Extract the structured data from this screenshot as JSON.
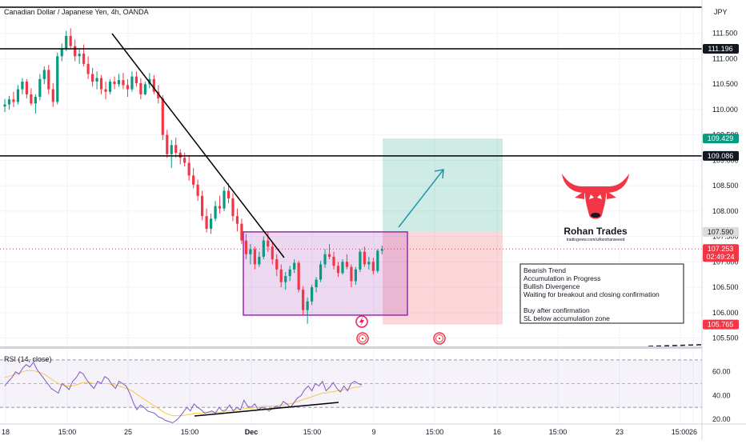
{
  "header": {
    "title": "Canadian Dollar / Japanese Yen, 4h, OANDA",
    "currency": "JPY"
  },
  "chart_data": {
    "type": "candlestick",
    "symbol": "CADJPY",
    "timeframe": "4h",
    "price_axis": {
      "ticks": [
        "111.500",
        "111.000",
        "110.500",
        "110.000",
        "109.500",
        "109.000",
        "108.500",
        "108.000",
        "107.500",
        "107.000",
        "106.500",
        "106.000",
        "105.500"
      ],
      "range": [
        105.35,
        112.0
      ]
    },
    "time_axis_labels": [
      "18",
      "15:00",
      "25",
      "15:00",
      "Dec",
      "15:00",
      "9",
      "15:00",
      "16",
      "15:00",
      "23",
      "15:00",
      "26"
    ],
    "candles_ohlc": [
      [
        110.06,
        110.21,
        109.95,
        110.1
      ],
      [
        110.1,
        110.27,
        110.0,
        110.2
      ],
      [
        110.2,
        110.35,
        110.05,
        110.15
      ],
      [
        110.15,
        110.48,
        110.1,
        110.4
      ],
      [
        110.4,
        110.62,
        110.3,
        110.55
      ],
      [
        110.55,
        110.6,
        110.22,
        110.3
      ],
      [
        110.3,
        110.42,
        110.08,
        110.12
      ],
      [
        110.12,
        110.3,
        109.92,
        110.25
      ],
      [
        110.25,
        110.7,
        110.18,
        110.6
      ],
      [
        110.6,
        110.85,
        110.5,
        110.78
      ],
      [
        110.78,
        110.88,
        110.3,
        110.4
      ],
      [
        110.4,
        110.52,
        110.05,
        110.15
      ],
      [
        110.15,
        111.12,
        110.1,
        111.05
      ],
      [
        111.05,
        111.3,
        110.95,
        111.2
      ],
      [
        111.2,
        111.55,
        111.15,
        111.45
      ],
      [
        111.45,
        111.6,
        111.2,
        111.25
      ],
      [
        111.25,
        111.38,
        110.95,
        111.05
      ],
      [
        111.05,
        111.18,
        110.9,
        111.1
      ],
      [
        111.1,
        111.28,
        110.85,
        110.9
      ],
      [
        110.9,
        111.05,
        110.6,
        110.7
      ],
      [
        110.7,
        110.82,
        110.45,
        110.55
      ],
      [
        110.55,
        110.75,
        110.4,
        110.62
      ],
      [
        110.62,
        110.68,
        110.3,
        110.4
      ],
      [
        110.4,
        110.55,
        110.2,
        110.35
      ],
      [
        110.35,
        110.6,
        110.3,
        110.55
      ],
      [
        110.55,
        110.65,
        110.4,
        110.5
      ],
      [
        110.5,
        110.7,
        110.45,
        110.58
      ],
      [
        110.58,
        110.72,
        110.4,
        110.48
      ],
      [
        110.48,
        110.6,
        110.25,
        110.4
      ],
      [
        110.4,
        110.75,
        110.35,
        110.65
      ],
      [
        110.65,
        110.75,
        110.45,
        110.52
      ],
      [
        110.52,
        110.62,
        110.2,
        110.3
      ],
      [
        110.3,
        110.55,
        110.28,
        110.5
      ],
      [
        110.5,
        110.72,
        110.42,
        110.6
      ],
      [
        110.6,
        110.68,
        110.3,
        110.35
      ],
      [
        110.35,
        110.48,
        110.12,
        110.22
      ],
      [
        110.22,
        110.28,
        109.4,
        109.5
      ],
      [
        109.5,
        109.6,
        109.05,
        109.12
      ],
      [
        109.12,
        109.4,
        108.85,
        109.3
      ],
      [
        109.3,
        109.45,
        109.05,
        109.15
      ],
      [
        109.15,
        109.22,
        108.92,
        109.05
      ],
      [
        109.05,
        109.15,
        108.88,
        108.95
      ],
      [
        108.95,
        109.1,
        108.6,
        108.7
      ],
      [
        108.7,
        108.85,
        108.45,
        108.52
      ],
      [
        108.52,
        108.62,
        108.2,
        108.3
      ],
      [
        108.3,
        108.4,
        107.82,
        107.9
      ],
      [
        107.9,
        108.05,
        107.58,
        107.65
      ],
      [
        107.65,
        107.95,
        107.55,
        107.85
      ],
      [
        107.85,
        108.2,
        107.8,
        108.1
      ],
      [
        108.1,
        108.3,
        107.95,
        108.05
      ],
      [
        108.05,
        108.48,
        108.0,
        108.4
      ],
      [
        108.4,
        108.55,
        108.15,
        108.25
      ],
      [
        108.25,
        108.35,
        107.8,
        107.9
      ],
      [
        107.9,
        108.05,
        107.6,
        107.75
      ],
      [
        107.75,
        107.85,
        107.35,
        107.42
      ],
      [
        107.42,
        107.55,
        107.05,
        107.15
      ],
      [
        107.15,
        107.35,
        106.95,
        107.25
      ],
      [
        107.25,
        107.3,
        106.85,
        106.95
      ],
      [
        106.95,
        107.2,
        106.9,
        107.1
      ],
      [
        107.1,
        107.5,
        107.05,
        107.42
      ],
      [
        107.42,
        107.58,
        107.2,
        107.3
      ],
      [
        107.3,
        107.38,
        106.95,
        107.05
      ],
      [
        107.05,
        107.15,
        106.72,
        106.85
      ],
      [
        106.85,
        106.95,
        106.5,
        106.6
      ],
      [
        106.6,
        106.8,
        106.45,
        106.72
      ],
      [
        106.72,
        106.92,
        106.62,
        106.85
      ],
      [
        106.85,
        107.05,
        106.78,
        106.98
      ],
      [
        106.98,
        107.02,
        106.4,
        106.45
      ],
      [
        106.45,
        106.52,
        105.95,
        106.05
      ],
      [
        106.05,
        106.3,
        105.78,
        106.22
      ],
      [
        106.22,
        106.55,
        106.15,
        106.5
      ],
      [
        106.5,
        106.7,
        106.4,
        106.65
      ],
      [
        106.65,
        107.02,
        106.6,
        106.95
      ],
      [
        106.95,
        107.25,
        106.88,
        107.15
      ],
      [
        107.15,
        107.35,
        107.05,
        107.1
      ],
      [
        107.1,
        107.2,
        106.85,
        106.92
      ],
      [
        106.92,
        107.0,
        106.7,
        106.78
      ],
      [
        106.78,
        107.05,
        106.75,
        107.0
      ],
      [
        107.0,
        107.15,
        106.85,
        106.9
      ],
      [
        106.9,
        106.95,
        106.5,
        106.62
      ],
      [
        106.62,
        106.9,
        106.55,
        106.85
      ],
      [
        106.85,
        107.25,
        106.8,
        107.2
      ],
      [
        107.2,
        107.3,
        106.9,
        106.95
      ],
      [
        106.95,
        107.1,
        106.85,
        107.0
      ],
      [
        107.0,
        107.08,
        106.75,
        106.82
      ],
      [
        106.82,
        107.25,
        106.78,
        107.22
      ],
      [
        107.22,
        107.32,
        107.15,
        107.25
      ]
    ],
    "horizontal_levels": [
      111.196,
      109.086
    ],
    "price_labels": [
      {
        "text": "111.196",
        "value": 111.196,
        "bg": "#131722",
        "fg": "#ffffff"
      },
      {
        "text": "109.429",
        "value": 109.429,
        "bg": "#089981",
        "fg": "#ffffff"
      },
      {
        "text": "109.086",
        "value": 109.086,
        "bg": "#131722",
        "fg": "#ffffff"
      },
      {
        "text": "107.590",
        "value": 107.59,
        "bg": "#dcdcdc",
        "fg": "#131722"
      },
      {
        "text": "107.253",
        "value": 107.253,
        "bg": "#f23645",
        "fg": "#ffffff",
        "sub": "02:49:24"
      },
      {
        "text": "105.765",
        "value": 105.765,
        "bg": "#f23645",
        "fg": "#ffffff"
      }
    ],
    "position": {
      "entry": 107.59,
      "target": 109.429,
      "stop": 105.765
    },
    "accumulation_zone": {
      "top": 107.59,
      "bottom": 105.95
    },
    "rsi": {
      "label": "RSI (14, close)",
      "ticks": [
        "60.00",
        "40.00",
        "20.00"
      ],
      "bands": [
        70,
        50,
        30
      ],
      "range": [
        16,
        78
      ],
      "rsi_series": [
        48,
        52,
        55,
        60,
        58,
        63,
        66,
        64,
        68,
        62,
        58,
        54,
        50,
        46,
        44,
        42,
        50,
        48,
        45,
        52,
        55,
        60,
        58,
        53,
        49,
        46,
        52,
        50,
        56,
        54,
        49,
        46,
        52,
        50,
        48,
        42,
        34,
        28,
        32,
        30,
        27,
        26,
        25,
        22,
        21,
        19,
        18,
        17,
        19,
        22,
        26,
        30,
        27,
        33,
        30,
        28,
        25,
        26,
        27,
        25,
        30,
        27,
        28,
        32,
        27,
        30,
        28,
        36,
        31,
        30,
        33,
        28,
        30,
        29,
        27,
        29,
        31,
        30,
        35,
        33,
        30,
        34,
        38,
        40,
        45,
        48,
        44,
        50,
        48,
        52,
        44,
        47,
        51,
        46,
        43,
        48,
        44,
        50,
        52,
        50,
        49
      ],
      "ma_series": [
        55,
        56,
        57,
        58,
        59,
        60,
        61,
        61,
        61,
        60,
        59,
        58,
        56,
        54,
        52,
        50,
        49,
        48,
        48,
        48,
        49,
        50,
        51,
        51,
        51,
        50,
        50,
        50,
        50,
        50,
        49,
        49,
        48,
        47,
        46,
        45,
        43,
        41,
        39,
        37,
        35,
        33,
        31,
        29,
        27,
        25,
        24,
        23,
        23,
        23,
        23,
        24,
        24,
        25,
        25,
        25,
        26,
        26,
        26,
        26,
        26,
        26,
        27,
        27,
        27,
        28,
        28,
        29,
        29,
        29,
        30,
        30,
        31,
        31,
        31,
        31,
        31,
        32,
        32,
        33,
        33,
        34,
        35,
        36,
        37,
        38,
        39,
        40,
        41,
        42,
        42,
        43,
        43,
        44,
        44,
        45,
        45,
        46,
        47,
        47,
        48
      ]
    }
  },
  "annotations": {
    "note_lines": [
      "Bearish Trend",
      "Accumulation in Progress",
      "Bullish Divergence",
      "Waiting for breakout and closing confirmation",
      "",
      "Buy after confirmation",
      "SL below accumulation zone"
    ]
  },
  "logo": {
    "name": "Rohan Trades",
    "url": "tradingview.com/u/itsrohanseeed"
  },
  "colors": {
    "up": "#089981",
    "down": "#f23645",
    "rsi": "#7e57c2",
    "rsi_ma": "#f7c948",
    "zone": "#9c27b0"
  }
}
